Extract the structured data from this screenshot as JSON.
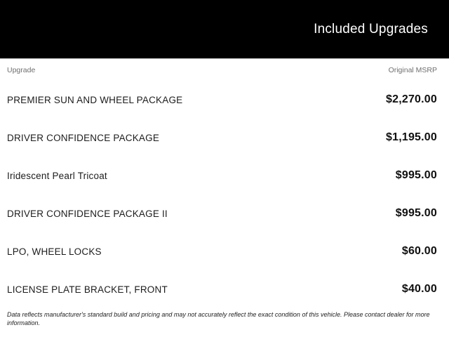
{
  "header": {
    "title": "Included Upgrades"
  },
  "table": {
    "columns": {
      "upgrade": "Upgrade",
      "msrp": "Original MSRP"
    },
    "rows": [
      {
        "label": "PREMIER SUN AND WHEEL PACKAGE",
        "price": "$2,270.00"
      },
      {
        "label": "DRIVER CONFIDENCE PACKAGE",
        "price": "$1,195.00"
      },
      {
        "label": "Iridescent Pearl Tricoat",
        "price": "$995.00"
      },
      {
        "label": "DRIVER CONFIDENCE PACKAGE II",
        "price": "$995.00"
      },
      {
        "label": "LPO, WHEEL LOCKS",
        "price": "$60.00"
      },
      {
        "label": "LICENSE PLATE BRACKET, FRONT",
        "price": "$40.00"
      }
    ]
  },
  "footer": {
    "disclaimer": "Data reflects manufacturer's standard build and pricing and may not accurately reflect the exact condition of this vehicle. Please contact dealer for more information."
  },
  "colors": {
    "header_bg": "#000000",
    "header_text": "#ffffff",
    "column_header_text": "#6f6f6f",
    "row_label_text": "#1c1c1c",
    "price_text": "#0f0f0f"
  }
}
